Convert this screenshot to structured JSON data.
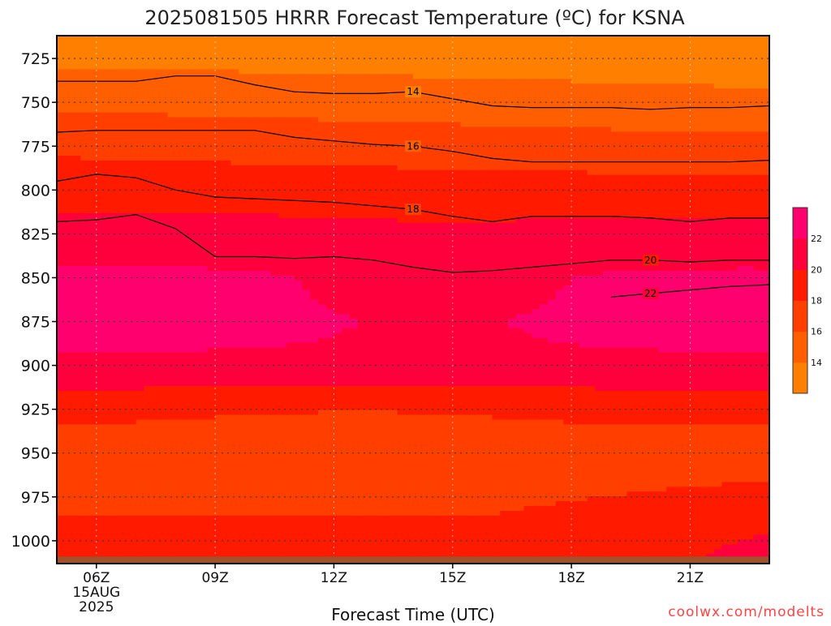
{
  "chart_data": {
    "type": "heatmap",
    "title": "2025081505 HRRR Forecast Temperature (ºC) for KSNA",
    "xlabel": "Forecast Time (UTC)",
    "ylabel": "",
    "credit": "coolwx.com/modelts",
    "x_ticks": [
      {
        "hour": 6,
        "label": "06Z",
        "sub": [
          "15AUG",
          "2025"
        ]
      },
      {
        "hour": 9,
        "label": "09Z",
        "sub": []
      },
      {
        "hour": 12,
        "label": "12Z",
        "sub": []
      },
      {
        "hour": 15,
        "label": "15Z",
        "sub": []
      },
      {
        "hour": 18,
        "label": "18Z",
        "sub": []
      },
      {
        "hour": 21,
        "label": "21Z",
        "sub": []
      }
    ],
    "xlim": [
      5,
      23
    ],
    "y_ticks": [
      725,
      750,
      775,
      800,
      825,
      850,
      875,
      900,
      925,
      950,
      975,
      1000
    ],
    "ylim": [
      1013,
      712
    ],
    "y_axis": "pressure (hPa), reversed",
    "grid": true,
    "surface_pressure": 1009,
    "levels": [
      12,
      14,
      16,
      18,
      20,
      22,
      24
    ],
    "level_colors": [
      "#ff7f00",
      "#ff5f00",
      "#ff3f00",
      "#ff1a00",
      "#ff003c",
      "#ff006e"
    ],
    "colorbar_labels": [
      14,
      16,
      18,
      20,
      22
    ],
    "hours": [
      5,
      6,
      7,
      8,
      9,
      10,
      11,
      12,
      13,
      14,
      15,
      16,
      17,
      18,
      19,
      20,
      21,
      22,
      23
    ],
    "pressures": [
      712,
      725,
      750,
      775,
      800,
      825,
      850,
      875,
      900,
      925,
      950,
      975,
      1000,
      1013
    ],
    "contour_isotherms": [
      {
        "value": 14,
        "hours": [
          5,
          6,
          7,
          8,
          9,
          10,
          11,
          12,
          13,
          14,
          15,
          16,
          17,
          18,
          19,
          20,
          21,
          22,
          23
        ],
        "pressure": [
          738,
          738,
          738,
          735,
          735,
          740,
          744,
          745,
          745,
          744,
          748,
          752,
          753,
          753,
          753,
          754,
          753,
          753,
          752
        ],
        "label_hour": 14.0
      },
      {
        "value": 16,
        "hours": [
          5,
          6,
          7,
          8,
          9,
          10,
          11,
          12,
          13,
          14,
          15,
          16,
          17,
          18,
          19,
          20,
          21,
          22,
          23
        ],
        "pressure": [
          767,
          766,
          766,
          766,
          766,
          766,
          770,
          772,
          774,
          775,
          778,
          782,
          784,
          784,
          784,
          784,
          784,
          784,
          783
        ],
        "label_hour": 14.0
      },
      {
        "value": 18,
        "hours": [
          5,
          6,
          7,
          8,
          9,
          10,
          11,
          12,
          13,
          14,
          15,
          16,
          17,
          18,
          19,
          20,
          21,
          22,
          23
        ],
        "pressure": [
          795,
          791,
          793,
          800,
          804,
          805,
          806,
          807,
          809,
          811,
          815,
          818,
          815,
          815,
          815,
          816,
          818,
          816,
          816
        ],
        "label_hour": 14.0
      },
      {
        "value": 20,
        "hours": [
          5,
          6,
          7,
          8,
          9,
          10,
          11,
          12,
          13,
          14,
          15,
          16,
          17,
          18,
          19,
          20,
          21,
          22,
          23
        ],
        "pressure": [
          818,
          817,
          814,
          822,
          838,
          838,
          839,
          838,
          840,
          844,
          847,
          846,
          844,
          842,
          840,
          840,
          841,
          840,
          840
        ],
        "label_hour": 20.0
      },
      {
        "value": 22,
        "hours": [
          19,
          20,
          21,
          22,
          23
        ],
        "pressure": [
          861,
          859,
          857,
          855,
          854
        ],
        "label_hour": 20.0
      }
    ]
  }
}
